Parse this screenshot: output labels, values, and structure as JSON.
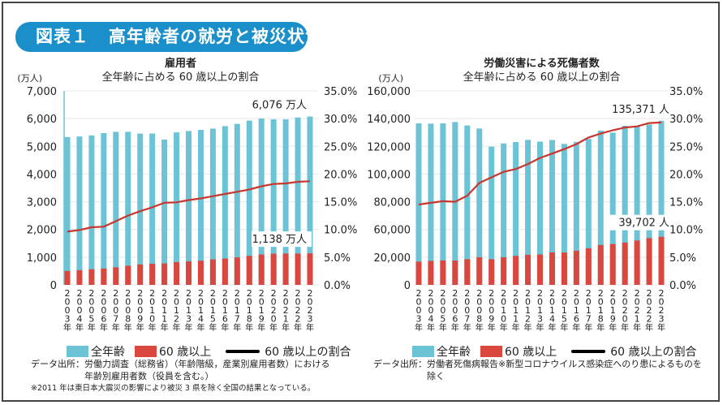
{
  "header": {
    "figure_label": "図表１",
    "title": "高年齢者の就労と被災状況",
    "accent_color": "#1a8fc9"
  },
  "colors": {
    "all_ages": "#6cc3d5",
    "age60plus": "#d9473f",
    "ratio_line": "#c8372f",
    "legend_line": "#000000"
  },
  "chart_data": [
    {
      "type": "bar",
      "stacked": "overlay",
      "title": "雇用者",
      "subtitle": "全年齢に占める 60 歳以上の割合",
      "ylabel": "(万人)",
      "categories": [
        "2003年",
        "2004年",
        "2005年",
        "2006年",
        "2007年",
        "2008年",
        "2009年",
        "2010年",
        "2011年",
        "2012年",
        "2013年",
        "2014年",
        "2015年",
        "2016年",
        "2017年",
        "2018年",
        "2019年",
        "2020年",
        "2021年",
        "2022年",
        "2023年"
      ],
      "ylim": [
        0,
        7000
      ],
      "yticks": [
        "0",
        "1,000",
        "2,000",
        "3,000",
        "4,000",
        "5,000",
        "6,000",
        "7,000"
      ],
      "y2lim": [
        0,
        35
      ],
      "y2ticks": [
        "0.0%",
        "5.0%",
        "10.0%",
        "15.0%",
        "20.0%",
        "25.0%",
        "30.0%",
        "35.0%"
      ],
      "series": [
        {
          "name": "全年齢",
          "type": "bar",
          "values": [
            5335,
            5355,
            5393,
            5478,
            5523,
            5524,
            5460,
            5463,
            5244,
            5504,
            5553,
            5595,
            5640,
            5729,
            5810,
            5927,
            6004,
            5973,
            5973,
            6041,
            6076
          ]
        },
        {
          "name": "60 歳以上",
          "type": "bar",
          "values": [
            503,
            530,
            563,
            590,
            636,
            689,
            737,
            763,
            772,
            823,
            848,
            872,
            917,
            952,
            991,
            1047,
            1097,
            1126,
            1130,
            1130,
            1138
          ]
        },
        {
          "name": "60 歳以上の割合",
          "type": "line",
          "axis": "right",
          "values": [
            9.6,
            9.9,
            10.4,
            10.5,
            11.5,
            12.5,
            13.3,
            14.0,
            14.8,
            14.9,
            15.3,
            15.6,
            16.0,
            16.4,
            16.8,
            17.2,
            17.8,
            18.2,
            18.3,
            18.6,
            18.7
          ]
        }
      ],
      "annotations": [
        {
          "text": "6,076 万人",
          "target": "全年齢 2023年"
        },
        {
          "text": "1,138 万人",
          "target": "60 歳以上 2023年"
        }
      ],
      "grid": true,
      "legend": "bottom"
    },
    {
      "type": "bar",
      "stacked": "overlay",
      "title": "労働災害による死傷者数",
      "subtitle": "全年齢に占める 60 歳以上の割合",
      "ylabel": "(万人)",
      "categories": [
        "2003年",
        "2004年",
        "2005年",
        "2006年",
        "2007年",
        "2008年",
        "2009年",
        "2010年",
        "2011年",
        "2012年",
        "2013年",
        "2014年",
        "2015年",
        "2016年",
        "2017年",
        "2018年",
        "2019年",
        "2020年",
        "2021年",
        "2022年",
        "2023年"
      ],
      "ylim": [
        0,
        160000
      ],
      "yticks": [
        "0",
        "20,000",
        "60,000",
        "80,000",
        "100,000",
        "120,000",
        "140,000",
        "160,000"
      ],
      "y2lim": [
        0,
        35
      ],
      "y2ticks": [
        "0.0%",
        "5.0%",
        "10.0%",
        "15.0%",
        "20.0%",
        "25.0%",
        "30.0%",
        "35.0%"
      ],
      "series": [
        {
          "name": "全年齢",
          "type": "bar",
          "values": [
            133200,
            133000,
            133200,
            134300,
            131500,
            129000,
            114000,
            116700,
            117800,
            119600,
            118200,
            119500,
            116300,
            117900,
            120400,
            127300,
            125600,
            131200,
            130600,
            132355,
            135371
          ]
        },
        {
          "name": "60 歳以上",
          "type": "bar",
          "values": [
            19200,
            19800,
            20200,
            20100,
            21200,
            22800,
            21200,
            22800,
            23900,
            24800,
            25100,
            26800,
            26700,
            28200,
            30200,
            32900,
            33700,
            34900,
            36600,
            38600,
            39702
          ]
        },
        {
          "name": "60 歳以上の割合",
          "type": "line",
          "axis": "right",
          "values": [
            14.5,
            14.8,
            15.1,
            15.0,
            16.1,
            18.4,
            19.4,
            20.4,
            20.9,
            21.8,
            22.9,
            23.7,
            24.5,
            25.4,
            26.6,
            27.3,
            27.9,
            28.4,
            28.6,
            29.2,
            29.3
          ]
        }
      ],
      "annotations": [
        {
          "text": "135,371 人",
          "target": "全年齢 2023年"
        },
        {
          "text": "39,702 人",
          "target": "60 歳以上 2023年"
        }
      ],
      "grid": true,
      "legend": "bottom"
    }
  ],
  "legend": {
    "all_ages": "全年齢",
    "age60plus": "60 歳以上",
    "ratio": "60 歳以上の割合"
  },
  "footnotes": {
    "left_source_line1": "データ出所：労働力調査（総務省）（年齢階級，産業別雇用者数）における",
    "left_source_line2": "年齢別雇用者数（役員を含む。）",
    "left_note": "※2011 年は東日本大震災の影響により被災 3 県を除く全国の結果となっている。",
    "right_source_line1": "データ出所：労働者死傷病報告※新型コロナウイルス感染症へのり患によるものを",
    "right_source_line2": "除く"
  }
}
